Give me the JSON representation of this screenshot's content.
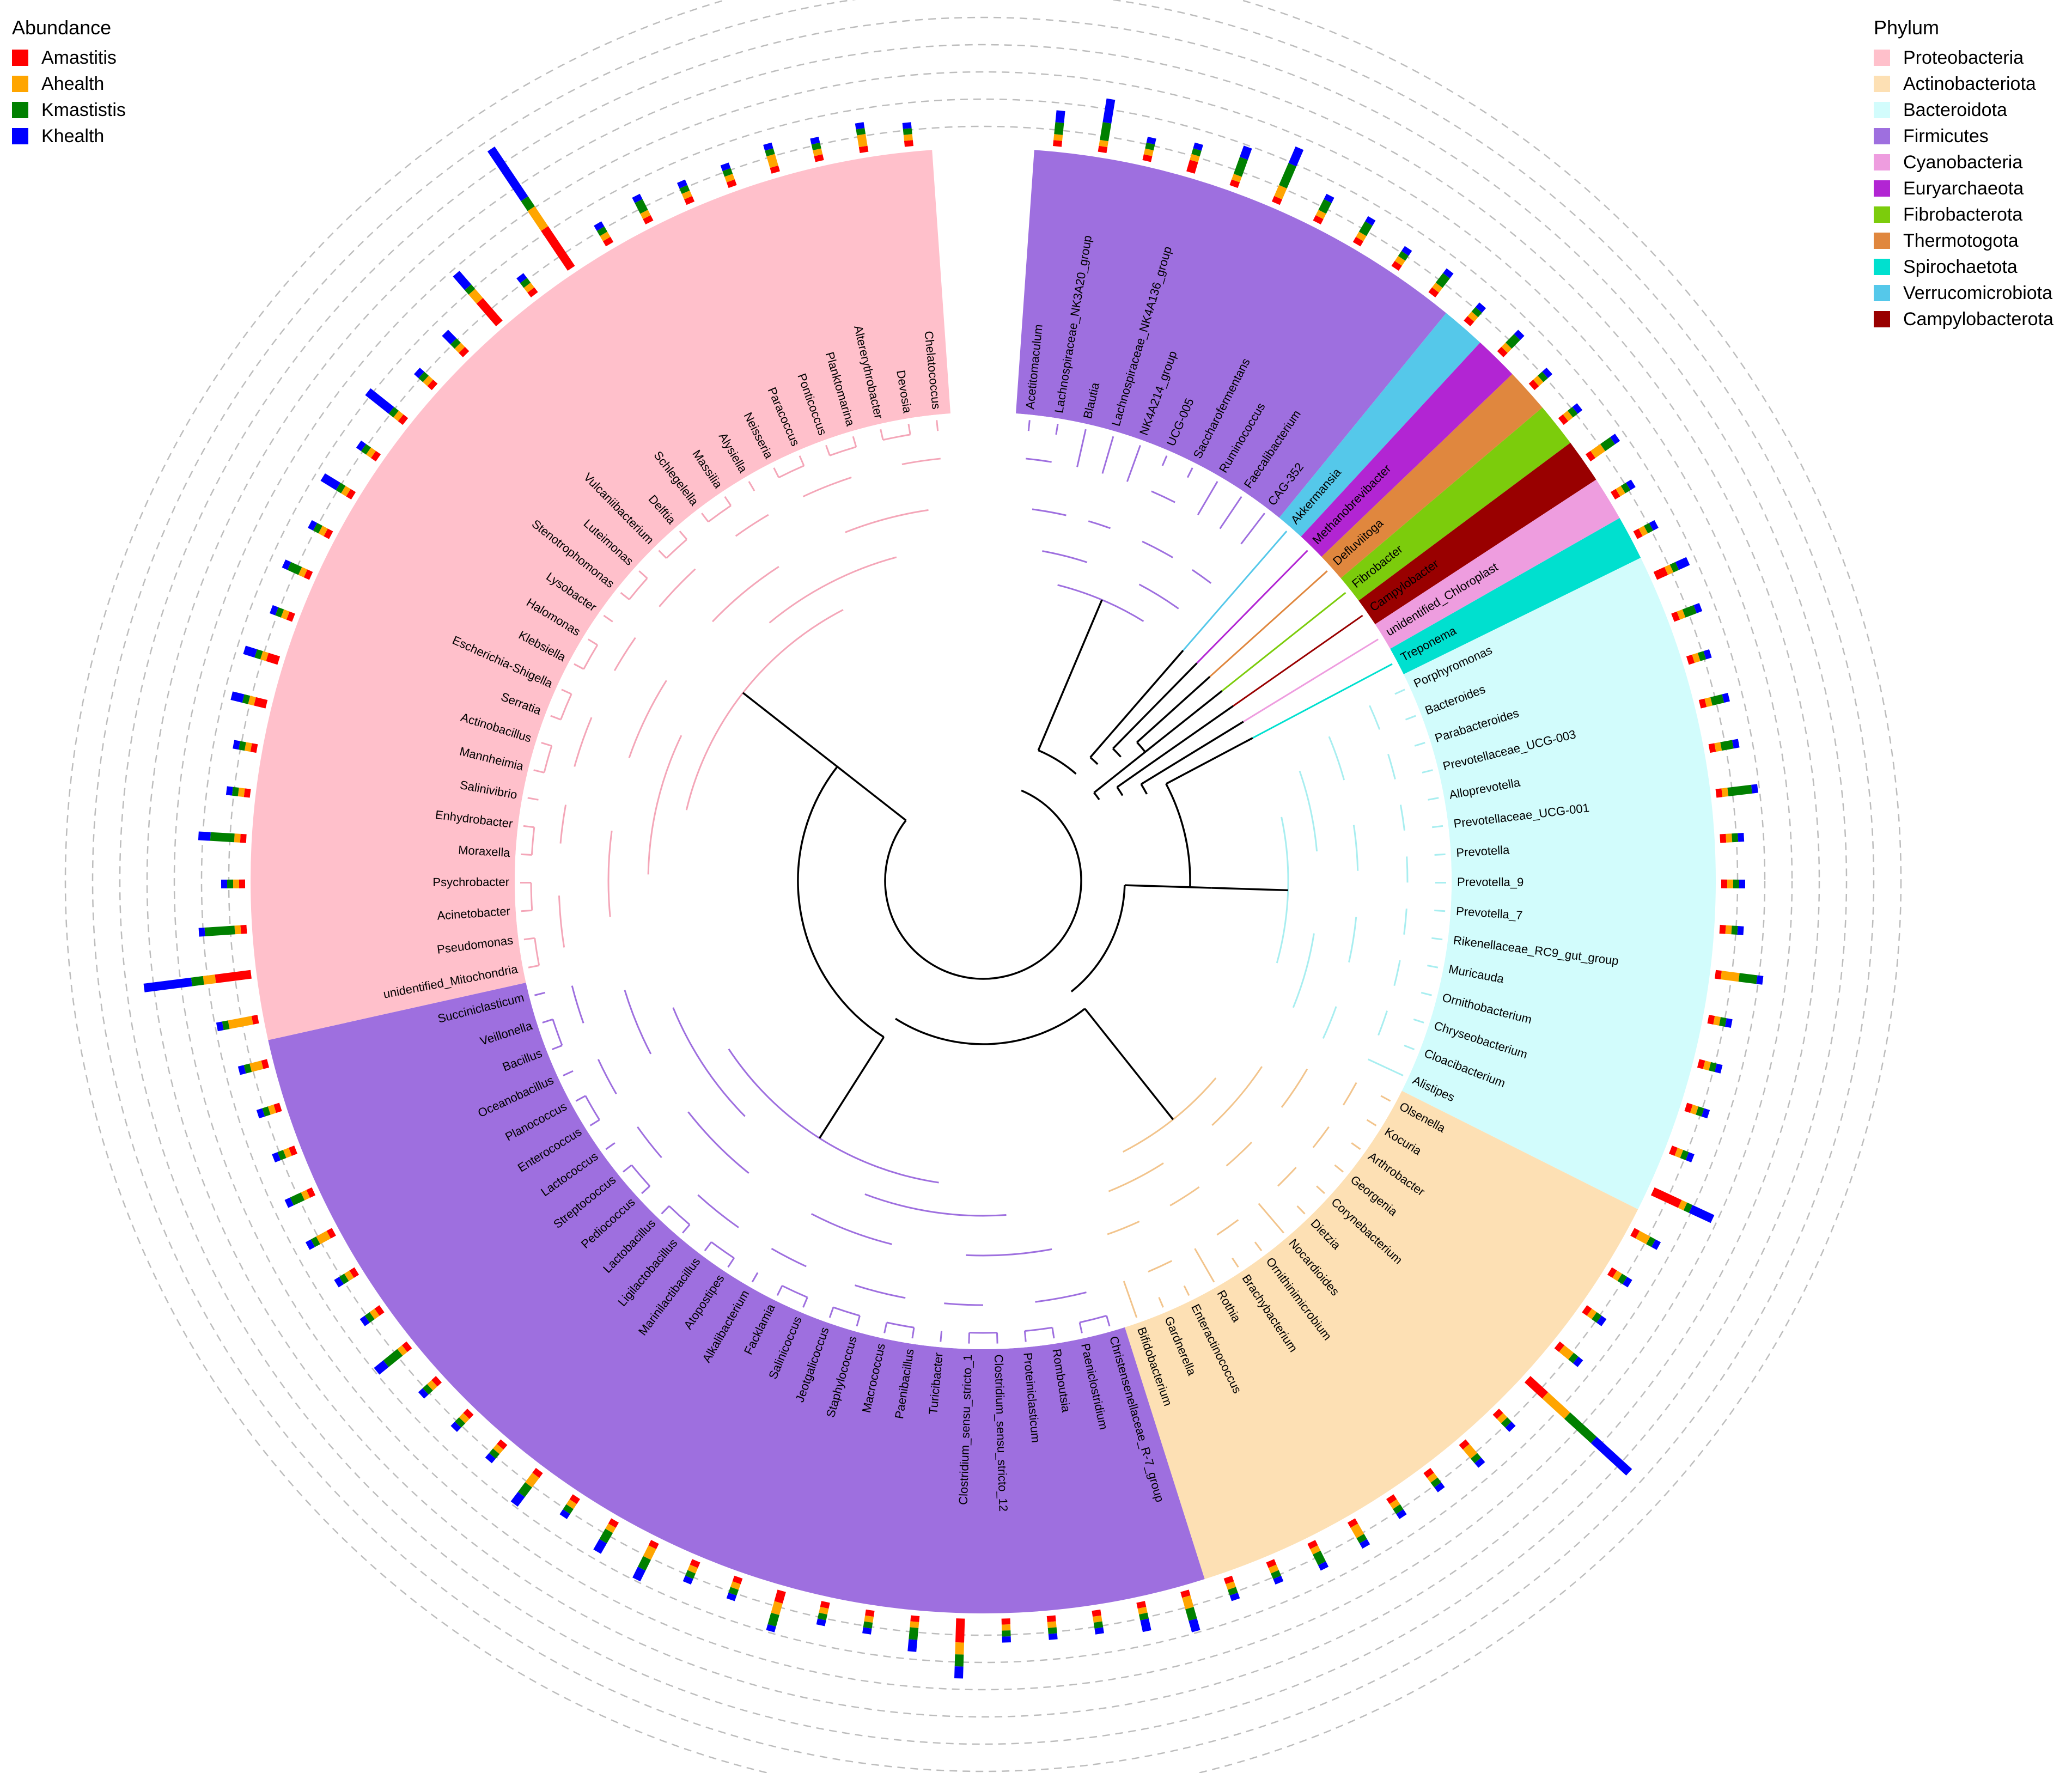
{
  "legend_abundance": {
    "title": "Abundance",
    "items": [
      {
        "name": "Amastitis",
        "color": "#ff0000"
      },
      {
        "name": "Ahealth",
        "color": "#ffa500"
      },
      {
        "name": "Kmastistis",
        "color": "#008000"
      },
      {
        "name": "Khealth",
        "color": "#0000ff"
      }
    ]
  },
  "legend_phylum": {
    "title": "Phylum",
    "items": [
      {
        "name": "Proteobacteria",
        "color": "#ffc0cb"
      },
      {
        "name": "Actinobacteriota",
        "color": "#fde0b4"
      },
      {
        "name": "Bacteroidota",
        "color": "#d2fcfc"
      },
      {
        "name": "Firmicutes",
        "color": "#9e6fdf"
      },
      {
        "name": "Cyanobacteria",
        "color": "#ee9ddf"
      },
      {
        "name": "Euryarchaeota",
        "color": "#b225d3"
      },
      {
        "name": "Fibrobacterota",
        "color": "#7ccc0c"
      },
      {
        "name": "Thermotogota",
        "color": "#e0873e"
      },
      {
        "name": "Spirochaetota",
        "color": "#00e0cf"
      },
      {
        "name": "Verrucomicrobiota",
        "color": "#55c8ea"
      },
      {
        "name": "Campylobacterota",
        "color": "#990000"
      }
    ]
  },
  "tree": {
    "tips": [
      {
        "label": "Acetitomaculum",
        "phylum": "Firmicutes",
        "abundance": [
          0.01,
          0.01,
          0.02,
          0.02
        ]
      },
      {
        "label": "Lachnospiraceae_NK3A20_group",
        "phylum": "Firmicutes",
        "abundance": [
          0.01,
          0.01,
          0.03,
          0.04
        ]
      },
      {
        "label": "Blautia",
        "phylum": "Firmicutes",
        "abundance": [
          0.01,
          0.01,
          0.01,
          0.01
        ]
      },
      {
        "label": "Lachnospiraceae_NK4A136_group",
        "phylum": "Firmicutes",
        "abundance": [
          0.02,
          0.01,
          0.01,
          0.01
        ]
      },
      {
        "label": "NK4A214_group",
        "phylum": "Firmicutes",
        "abundance": [
          0.01,
          0.01,
          0.03,
          0.02
        ]
      },
      {
        "label": "UCG-005",
        "phylum": "Firmicutes",
        "abundance": [
          0.01,
          0.02,
          0.04,
          0.03
        ]
      },
      {
        "label": "Saccharofermentans",
        "phylum": "Firmicutes",
        "abundance": [
          0.01,
          0.01,
          0.02,
          0.01
        ]
      },
      {
        "label": "Ruminococcus",
        "phylum": "Firmicutes",
        "abundance": [
          0.01,
          0.01,
          0.02,
          0.01
        ]
      },
      {
        "label": "Faecalibacterium",
        "phylum": "Firmicutes",
        "abundance": [
          0.01,
          0.01,
          0.01,
          0.01
        ]
      },
      {
        "label": "CAG-352",
        "phylum": "Firmicutes",
        "abundance": [
          0.01,
          0.01,
          0.02,
          0.01
        ]
      },
      {
        "label": "Akkermansia",
        "phylum": "Verrucomicrobiota",
        "abundance": [
          0.01,
          0.01,
          0.01,
          0.01
        ]
      },
      {
        "label": "Methanobrevibacter",
        "phylum": "Euryarchaeota",
        "abundance": [
          0.01,
          0.01,
          0.02,
          0.01
        ]
      },
      {
        "label": "Defluviitoga",
        "phylum": "Thermotogota",
        "abundance": [
          0.01,
          0.01,
          0.01,
          0.01
        ]
      },
      {
        "label": "Fibrobacter",
        "phylum": "Fibrobacterota",
        "abundance": [
          0.01,
          0.01,
          0.01,
          0.01
        ]
      },
      {
        "label": "Campylobacter",
        "phylum": "Campylobacterota",
        "abundance": [
          0.01,
          0.02,
          0.02,
          0.01
        ]
      },
      {
        "label": "unidentified_Chloroplast",
        "phylum": "Cyanobacteria",
        "abundance": [
          0.01,
          0.01,
          0.01,
          0.01
        ]
      },
      {
        "label": "Treponema",
        "phylum": "Spirochaetota",
        "abundance": [
          0.01,
          0.01,
          0.01,
          0.01
        ]
      },
      {
        "label": "Porphyromonas",
        "phylum": "Bacteroidota",
        "abundance": [
          0.02,
          0.01,
          0.01,
          0.02
        ]
      },
      {
        "label": "Bacteroides",
        "phylum": "Bacteroidota",
        "abundance": [
          0.01,
          0.01,
          0.02,
          0.01
        ]
      },
      {
        "label": "Parabacteroides",
        "phylum": "Bacteroidota",
        "abundance": [
          0.01,
          0.01,
          0.01,
          0.01
        ]
      },
      {
        "label": "Prevotellaceae_UCG-003",
        "phylum": "Bacteroidota",
        "abundance": [
          0.01,
          0.01,
          0.02,
          0.01
        ]
      },
      {
        "label": "Alloprevotella",
        "phylum": "Bacteroidota",
        "abundance": [
          0.01,
          0.01,
          0.02,
          0.01
        ]
      },
      {
        "label": "Prevotellaceae_UCG-001",
        "phylum": "Bacteroidota",
        "abundance": [
          0.01,
          0.01,
          0.04,
          0.01
        ]
      },
      {
        "label": "Prevotella",
        "phylum": "Bacteroidota",
        "abundance": [
          0.01,
          0.01,
          0.01,
          0.01
        ]
      },
      {
        "label": "Prevotella_9",
        "phylum": "Bacteroidota",
        "abundance": [
          0.01,
          0.01,
          0.01,
          0.01
        ]
      },
      {
        "label": "Prevotella_7",
        "phylum": "Bacteroidota",
        "abundance": [
          0.01,
          0.01,
          0.01,
          0.01
        ]
      },
      {
        "label": "Rikenellaceae_RC9_gut_group",
        "phylum": "Bacteroidota",
        "abundance": [
          0.01,
          0.03,
          0.03,
          0.01
        ]
      },
      {
        "label": "Muricauda",
        "phylum": "Bacteroidota",
        "abundance": [
          0.01,
          0.01,
          0.01,
          0.01
        ]
      },
      {
        "label": "Ornithobacterium",
        "phylum": "Bacteroidota",
        "abundance": [
          0.01,
          0.01,
          0.01,
          0.01
        ]
      },
      {
        "label": "Chryseobacterium",
        "phylum": "Bacteroidota",
        "abundance": [
          0.01,
          0.01,
          0.01,
          0.01
        ]
      },
      {
        "label": "Cloacibacterium",
        "phylum": "Bacteroidota",
        "abundance": [
          0.01,
          0.01,
          0.01,
          0.01
        ]
      },
      {
        "label": "Alistipes",
        "phylum": "Bacteroidota",
        "abundance": [
          0.05,
          0.01,
          0.01,
          0.04
        ]
      },
      {
        "label": "Olsenella",
        "phylum": "Actinobacteriota",
        "abundance": [
          0.01,
          0.02,
          0.01,
          0.01
        ]
      },
      {
        "label": "Kocuria",
        "phylum": "Actinobacteriota",
        "abundance": [
          0.01,
          0.01,
          0.01,
          0.01
        ]
      },
      {
        "label": "Arthrobacter",
        "phylum": "Actinobacteriota",
        "abundance": [
          0.01,
          0.01,
          0.01,
          0.01
        ]
      },
      {
        "label": "Georgenia",
        "phylum": "Actinobacteriota",
        "abundance": [
          0.01,
          0.02,
          0.01,
          0.01
        ]
      },
      {
        "label": "Corynebacterium",
        "phylum": "Actinobacteriota",
        "abundance": [
          0.04,
          0.05,
          0.06,
          0.08
        ]
      },
      {
        "label": "Dietzia",
        "phylum": "Actinobacteriota",
        "abundance": [
          0.01,
          0.01,
          0.01,
          0.01
        ]
      },
      {
        "label": "Nocardioides",
        "phylum": "Actinobacteriota",
        "abundance": [
          0.01,
          0.02,
          0.01,
          0.01
        ]
      },
      {
        "label": "Ornithinimicrobium",
        "phylum": "Actinobacteriota",
        "abundance": [
          0.01,
          0.01,
          0.01,
          0.01
        ]
      },
      {
        "label": "Brachybacterium",
        "phylum": "Actinobacteriota",
        "abundance": [
          0.01,
          0.01,
          0.01,
          0.01
        ]
      },
      {
        "label": "Rothia",
        "phylum": "Actinobacteriota",
        "abundance": [
          0.01,
          0.02,
          0.01,
          0.01
        ]
      },
      {
        "label": "Enteractinococcus",
        "phylum": "Actinobacteriota",
        "abundance": [
          0.01,
          0.01,
          0.02,
          0.01
        ]
      },
      {
        "label": "Gardnerella",
        "phylum": "Actinobacteriota",
        "abundance": [
          0.01,
          0.01,
          0.01,
          0.01
        ]
      },
      {
        "label": "Bifidobacterium",
        "phylum": "Actinobacteriota",
        "abundance": [
          0.01,
          0.01,
          0.01,
          0.01
        ]
      },
      {
        "label": "Christensenellaceae_R-7_group",
        "phylum": "Firmicutes",
        "abundance": [
          0.01,
          0.02,
          0.02,
          0.02
        ]
      },
      {
        "label": "Paeniclostridium",
        "phylum": "Firmicutes",
        "abundance": [
          0.01,
          0.01,
          0.01,
          0.02
        ]
      },
      {
        "label": "Romboutsia",
        "phylum": "Firmicutes",
        "abundance": [
          0.01,
          0.01,
          0.01,
          0.01
        ]
      },
      {
        "label": "Proteiniclasticum",
        "phylum": "Firmicutes",
        "abundance": [
          0.01,
          0.01,
          0.01,
          0.01
        ]
      },
      {
        "label": "Clostridium_sensu_stricto_12",
        "phylum": "Firmicutes",
        "abundance": [
          0.01,
          0.01,
          0.01,
          0.01
        ]
      },
      {
        "label": "Clostridium_sensu_stricto_1",
        "phylum": "Firmicutes",
        "abundance": [
          0.04,
          0.02,
          0.02,
          0.02
        ]
      },
      {
        "label": "Turicibacter",
        "phylum": "Firmicutes",
        "abundance": [
          0.01,
          0.01,
          0.02,
          0.02
        ]
      },
      {
        "label": "Paenibacillus",
        "phylum": "Firmicutes",
        "abundance": [
          0.01,
          0.01,
          0.01,
          0.01
        ]
      },
      {
        "label": "Macrococcus",
        "phylum": "Firmicutes",
        "abundance": [
          0.01,
          0.01,
          0.01,
          0.01
        ]
      },
      {
        "label": "Staphylococcus",
        "phylum": "Firmicutes",
        "abundance": [
          0.02,
          0.02,
          0.02,
          0.01
        ]
      },
      {
        "label": "Jeotgalicoccus",
        "phylum": "Firmicutes",
        "abundance": [
          0.01,
          0.01,
          0.01,
          0.01
        ]
      },
      {
        "label": "Salinicoccus",
        "phylum": "Firmicutes",
        "abundance": [
          0.01,
          0.01,
          0.01,
          0.01
        ]
      },
      {
        "label": "Facklamia",
        "phylum": "Firmicutes",
        "abundance": [
          0.01,
          0.02,
          0.02,
          0.02
        ]
      },
      {
        "label": "Alkalibacterium",
        "phylum": "Firmicutes",
        "abundance": [
          0.01,
          0.01,
          0.02,
          0.02
        ]
      },
      {
        "label": "Atopostipes",
        "phylum": "Firmicutes",
        "abundance": [
          0.01,
          0.01,
          0.01,
          0.01
        ]
      },
      {
        "label": "Marinilactibacillus",
        "phylum": "Firmicutes",
        "abundance": [
          0.01,
          0.02,
          0.02,
          0.02
        ]
      },
      {
        "label": "Ligilactobacillus",
        "phylum": "Firmicutes",
        "abundance": [
          0.01,
          0.01,
          0.01,
          0.01
        ]
      },
      {
        "label": "Lactobacillus",
        "phylum": "Firmicutes",
        "abundance": [
          0.01,
          0.01,
          0.01,
          0.01
        ]
      },
      {
        "label": "Pediococcus",
        "phylum": "Firmicutes",
        "abundance": [
          0.01,
          0.01,
          0.01,
          0.01
        ]
      },
      {
        "label": "Streptococcus",
        "phylum": "Firmicutes",
        "abundance": [
          0.01,
          0.01,
          0.03,
          0.02
        ]
      },
      {
        "label": "Lactococcus",
        "phylum": "Firmicutes",
        "abundance": [
          0.01,
          0.01,
          0.01,
          0.01
        ]
      },
      {
        "label": "Enterococcus",
        "phylum": "Firmicutes",
        "abundance": [
          0.01,
          0.01,
          0.01,
          0.01
        ]
      },
      {
        "label": "Planococcus",
        "phylum": "Firmicutes",
        "abundance": [
          0.01,
          0.02,
          0.01,
          0.01
        ]
      },
      {
        "label": "Oceanobacillus",
        "phylum": "Firmicutes",
        "abundance": [
          0.01,
          0.01,
          0.02,
          0.01
        ]
      },
      {
        "label": "Bacillus",
        "phylum": "Firmicutes",
        "abundance": [
          0.01,
          0.01,
          0.01,
          0.01
        ]
      },
      {
        "label": "Veillonella",
        "phylum": "Firmicutes",
        "abundance": [
          0.01,
          0.01,
          0.01,
          0.01
        ]
      },
      {
        "label": "Succiniclasticum",
        "phylum": "Firmicutes",
        "abundance": [
          0.01,
          0.02,
          0.01,
          0.01
        ]
      },
      {
        "label": "unidentified_Mitochondria",
        "phylum": "Proteobacteria",
        "abundance": [
          0.01,
          0.04,
          0.01,
          0.01
        ]
      },
      {
        "label": "Pseudomonas",
        "phylum": "Proteobacteria",
        "abundance": [
          0.06,
          0.02,
          0.02,
          0.08
        ]
      },
      {
        "label": "Acinetobacter",
        "phylum": "Proteobacteria",
        "abundance": [
          0.01,
          0.01,
          0.05,
          0.01
        ]
      },
      {
        "label": "Psychrobacter",
        "phylum": "Proteobacteria",
        "abundance": [
          0.01,
          0.01,
          0.01,
          0.01
        ]
      },
      {
        "label": "Moraxella",
        "phylum": "Proteobacteria",
        "abundance": [
          0.01,
          0.01,
          0.04,
          0.02
        ]
      },
      {
        "label": "Enhydrobacter",
        "phylum": "Proteobacteria",
        "abundance": [
          0.01,
          0.01,
          0.01,
          0.01
        ]
      },
      {
        "label": "Salinivibrio",
        "phylum": "Proteobacteria",
        "abundance": [
          0.01,
          0.01,
          0.01,
          0.01
        ]
      },
      {
        "label": "Mannheimia",
        "phylum": "Proteobacteria",
        "abundance": [
          0.02,
          0.01,
          0.01,
          0.02
        ]
      },
      {
        "label": "Actinobacillus",
        "phylum": "Proteobacteria",
        "abundance": [
          0.02,
          0.01,
          0.01,
          0.02
        ]
      },
      {
        "label": "Serratia",
        "phylum": "Proteobacteria",
        "abundance": [
          0.01,
          0.01,
          0.01,
          0.01
        ]
      },
      {
        "label": "Escherichia-Shigella",
        "phylum": "Proteobacteria",
        "abundance": [
          0.01,
          0.01,
          0.02,
          0.01
        ]
      },
      {
        "label": "Klebsiella",
        "phylum": "Proteobacteria",
        "abundance": [
          0.01,
          0.01,
          0.01,
          0.01
        ]
      },
      {
        "label": "Halomonas",
        "phylum": "Proteobacteria",
        "abundance": [
          0.01,
          0.01,
          0.01,
          0.03
        ]
      },
      {
        "label": "Lysobacter",
        "phylum": "Proteobacteria",
        "abundance": [
          0.01,
          0.01,
          0.01,
          0.01
        ]
      },
      {
        "label": "Stenotrophomonas",
        "phylum": "Proteobacteria",
        "abundance": [
          0.01,
          0.01,
          0.01,
          0.05
        ]
      },
      {
        "label": "Luteimonas",
        "phylum": "Proteobacteria",
        "abundance": [
          0.01,
          0.01,
          0.01,
          0.01
        ]
      },
      {
        "label": "Vulcaniibacterium",
        "phylum": "Proteobacteria",
        "abundance": [
          0.01,
          0.01,
          0.01,
          0.02
        ]
      },
      {
        "label": "Delftia",
        "phylum": "Proteobacteria",
        "abundance": [
          0.05,
          0.02,
          0.01,
          0.03
        ]
      },
      {
        "label": "Schlegelella",
        "phylum": "Proteobacteria",
        "abundance": [
          0.01,
          0.01,
          0.01,
          0.01
        ]
      },
      {
        "label": "Massilia",
        "phylum": "Proteobacteria",
        "abundance": [
          0.08,
          0.04,
          0.02,
          0.1
        ]
      },
      {
        "label": "Alysiella",
        "phylum": "Proteobacteria",
        "abundance": [
          0.01,
          0.01,
          0.01,
          0.01
        ]
      },
      {
        "label": "Neisseria",
        "phylum": "Proteobacteria",
        "abundance": [
          0.01,
          0.01,
          0.02,
          0.01
        ]
      },
      {
        "label": "Paracoccus",
        "phylum": "Proteobacteria",
        "abundance": [
          0.01,
          0.01,
          0.01,
          0.01
        ]
      },
      {
        "label": "Ponticoccus",
        "phylum": "Proteobacteria",
        "abundance": [
          0.01,
          0.01,
          0.01,
          0.01
        ]
      },
      {
        "label": "Planktomarina",
        "phylum": "Proteobacteria",
        "abundance": [
          0.01,
          0.02,
          0.01,
          0.01
        ]
      },
      {
        "label": "Altererythrobacter",
        "phylum": "Proteobacteria",
        "abundance": [
          0.01,
          0.01,
          0.01,
          0.01
        ]
      },
      {
        "label": "Devosia",
        "phylum": "Proteobacteria",
        "abundance": [
          0.01,
          0.02,
          0.01,
          0.01
        ]
      },
      {
        "label": "Chelatococcus",
        "phylum": "Proteobacteria",
        "abundance": [
          0.01,
          0.01,
          0.01,
          0.01
        ]
      }
    ]
  }
}
